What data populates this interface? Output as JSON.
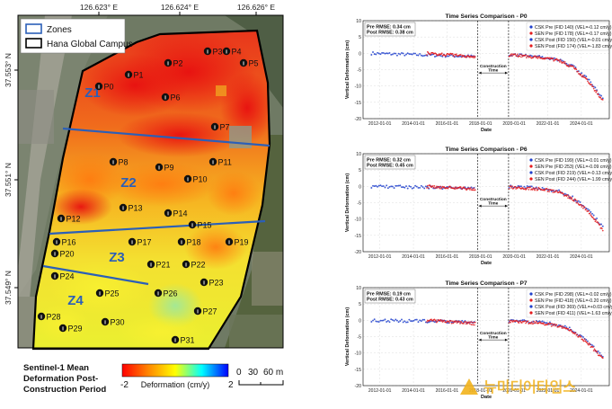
{
  "map": {
    "lon_ticks": [
      "126.623° E",
      "126.624° E",
      "126.626° E"
    ],
    "lat_ticks": [
      "37.553° N",
      "37.551° N",
      "37.549° N"
    ],
    "legend": {
      "zones": "Zones",
      "campus": "Hana Global Campus"
    },
    "zones": [
      "Z1",
      "Z2",
      "Z3",
      "Z4"
    ],
    "points": [
      {
        "id": "P0"
      },
      {
        "id": "P1"
      },
      {
        "id": "P2"
      },
      {
        "id": "P3"
      },
      {
        "id": "P4"
      },
      {
        "id": "P5"
      },
      {
        "id": "P6"
      },
      {
        "id": "P7"
      },
      {
        "id": "P8"
      },
      {
        "id": "P9"
      },
      {
        "id": "P10"
      },
      {
        "id": "P11"
      },
      {
        "id": "P12"
      },
      {
        "id": "P13"
      },
      {
        "id": "P14"
      },
      {
        "id": "P15"
      },
      {
        "id": "P16"
      },
      {
        "id": "P17"
      },
      {
        "id": "P18"
      },
      {
        "id": "P19"
      },
      {
        "id": "P20"
      },
      {
        "id": "P21"
      },
      {
        "id": "P22"
      },
      {
        "id": "P23"
      },
      {
        "id": "P24"
      },
      {
        "id": "P25"
      },
      {
        "id": "P26"
      },
      {
        "id": "P27"
      },
      {
        "id": "P28"
      },
      {
        "id": "P29"
      },
      {
        "id": "P30"
      },
      {
        "id": "P31"
      }
    ],
    "caption": [
      "Sentinel-1 Mean",
      "Deformation Post-",
      "Construction Period"
    ],
    "colorbar": {
      "min": "-2",
      "max": "2",
      "label": "Deformation (cm/y)",
      "colors": [
        "#ff0000",
        "#ff8800",
        "#ffff00",
        "#00ffff",
        "#0000ff"
      ]
    },
    "scalebar": [
      "0",
      "30",
      "60 m"
    ]
  },
  "chart_data": [
    {
      "type": "scatter",
      "title": "Time Series Comparison - P0",
      "xlabel": "Date",
      "ylabel": "Vertical Deformation (cm)",
      "ylim": [
        -20,
        10
      ],
      "yticks": [
        10,
        5,
        0,
        -5,
        -10,
        -15,
        -20
      ],
      "xlim": [
        "2011-01-01",
        "2025-09-01"
      ],
      "xticks": [
        "2012-01-01",
        "2014-01-01",
        "2016-01-01",
        "2018-01-01",
        "2020-01-01",
        "2022-01-01",
        "2024-01-01"
      ],
      "rmse": [
        "Pre RMSE: 0.34 cm",
        "Post RMSE: 0.38 cm"
      ],
      "construction": {
        "start": "2017-11-01",
        "end": "2019-09-01",
        "label": [
          "Construction",
          "Time"
        ]
      },
      "series": [
        {
          "name": "CSK Pre (FID 140) (VEL=-0.12 cm/y)",
          "color": "#1f3fcc",
          "period": "pre",
          "trend": [
            [
              2011.5,
              0
            ],
            [
              2017.7,
              -1.0
            ]
          ]
        },
        {
          "name": "SEN Pre (FID 178) (VEL=-0.17 cm/y)",
          "color": "#e41a1c",
          "period": "pre",
          "trend": [
            [
              2014.8,
              0
            ],
            [
              2017.7,
              -1.0
            ]
          ]
        },
        {
          "name": "CSK Post (FID 150) (VEL=-0.01 cm/y)",
          "color": "#1f3fcc",
          "period": "post",
          "trend": [
            [
              2019.7,
              -0.3
            ],
            [
              2021.5,
              -1.0
            ],
            [
              2022.7,
              -2.0
            ],
            [
              2023.5,
              -4.0
            ],
            [
              2024.4,
              -8.0
            ],
            [
              2025.3,
              -14.0
            ]
          ]
        },
        {
          "name": "SEN Post (FID 174) (VEL=-1.83 cm/y)",
          "color": "#e41a1c",
          "period": "post",
          "trend": [
            [
              2019.7,
              -0.5
            ],
            [
              2021.5,
              -1.2
            ],
            [
              2022.7,
              -2.2
            ],
            [
              2023.5,
              -4.3
            ],
            [
              2024.4,
              -8.5
            ],
            [
              2025.3,
              -14.5
            ]
          ]
        }
      ]
    },
    {
      "type": "scatter",
      "title": "Time Series Comparison - P6",
      "xlabel": "Date",
      "ylabel": "Vertical Deformation (cm)",
      "ylim": [
        -20,
        10
      ],
      "yticks": [
        10,
        5,
        0,
        -5,
        -10,
        -15,
        -20
      ],
      "xlim": [
        "2011-01-01",
        "2025-09-01"
      ],
      "xticks": [
        "2012-01-01",
        "2014-01-01",
        "2016-01-01",
        "2018-01-01",
        "2020-01-01",
        "2022-01-01",
        "2024-01-01"
      ],
      "rmse": [
        "Pre RMSE: 0.32 cm",
        "Post RMSE: 0.45 cm"
      ],
      "construction": {
        "start": "2017-11-01",
        "end": "2019-09-01",
        "label": [
          "Construction",
          "Time"
        ]
      },
      "series": [
        {
          "name": "CSK Pre (FID 199) (VEL=-0.01 cm/y)",
          "color": "#1f3fcc",
          "period": "pre",
          "trend": [
            [
              2011.5,
              0
            ],
            [
              2017.7,
              -0.5
            ]
          ]
        },
        {
          "name": "SEN Pre (FID 253) (VEL=-0.09 cm/y)",
          "color": "#e41a1c",
          "period": "pre",
          "trend": [
            [
              2014.8,
              0
            ],
            [
              2017.7,
              -0.8
            ]
          ]
        },
        {
          "name": "CSK Post (FID 219) (VEL=-0.13 cm/y)",
          "color": "#1f3fcc",
          "period": "post",
          "trend": [
            [
              2019.7,
              0
            ],
            [
              2021.5,
              -0.5
            ],
            [
              2022.7,
              -1.5
            ],
            [
              2023.5,
              -3.5
            ],
            [
              2024.4,
              -7.0
            ],
            [
              2025.3,
              -12.5
            ]
          ]
        },
        {
          "name": "SEN Post (FID 244) (VEL=-1.99 cm/y)",
          "color": "#e41a1c",
          "period": "post",
          "trend": [
            [
              2019.7,
              -0.3
            ],
            [
              2021.5,
              -0.8
            ],
            [
              2022.7,
              -1.8
            ],
            [
              2023.5,
              -3.8
            ],
            [
              2024.4,
              -7.5
            ],
            [
              2025.3,
              -13.5
            ]
          ]
        }
      ]
    },
    {
      "type": "scatter",
      "title": "Time Series Comparison - P7",
      "xlabel": "Date",
      "ylabel": "Vertical Deformation (cm)",
      "ylim": [
        -20,
        10
      ],
      "yticks": [
        10,
        5,
        0,
        -5,
        -10,
        -15,
        -20
      ],
      "xlim": [
        "2011-01-01",
        "2025-09-01"
      ],
      "xticks": [
        "2012-01-01",
        "2014-01-01",
        "2016-01-01",
        "2018-01-01",
        "2020-01-01",
        "2022-01-01",
        "2024-01-01"
      ],
      "rmse": [
        "Pre RMSE: 0.19 cm",
        "Post RMSE: 0.43 cm"
      ],
      "construction": {
        "start": "2017-11-01",
        "end": "2019-09-01",
        "label": [
          "Construction",
          "Time"
        ]
      },
      "series": [
        {
          "name": "CSK Pre (FID 298) (VEL=-0.02 cm/y)",
          "color": "#1f3fcc",
          "period": "pre",
          "trend": [
            [
              2011.5,
              0
            ],
            [
              2017.7,
              -0.5
            ]
          ]
        },
        {
          "name": "SEN Pre (FID 418) (VEL=-0.20 cm/y)",
          "color": "#e41a1c",
          "period": "pre",
          "trend": [
            [
              2014.8,
              0
            ],
            [
              2017.7,
              -1.0
            ]
          ]
        },
        {
          "name": "CSK Post (FID 369) (VEL=+0.03 cm/y)",
          "color": "#1f3fcc",
          "period": "post",
          "trend": [
            [
              2019.7,
              0
            ],
            [
              2021.5,
              -0.5
            ],
            [
              2022.7,
              -1.5
            ],
            [
              2023.5,
              -3.0
            ],
            [
              2024.4,
              -6.5
            ],
            [
              2025.3,
              -11.5
            ]
          ]
        },
        {
          "name": "SEN Post (FID 411) (VEL=-1.63 cm/y)",
          "color": "#e41a1c",
          "period": "post",
          "trend": [
            [
              2019.7,
              -0.3
            ],
            [
              2021.5,
              -0.8
            ],
            [
              2022.7,
              -1.8
            ],
            [
              2023.5,
              -3.5
            ],
            [
              2024.4,
              -7.0
            ],
            [
              2025.3,
              -12.0
            ]
          ]
        }
      ]
    }
  ],
  "watermark": "뉴미디어타임스"
}
